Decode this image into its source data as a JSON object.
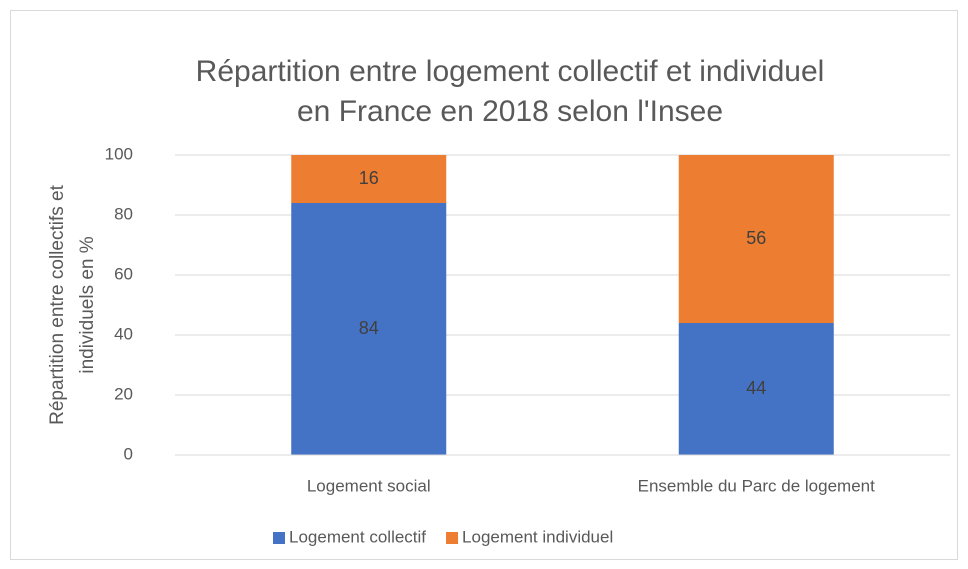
{
  "chart_data": {
    "type": "stacked_bar",
    "title": [
      "Répartition entre logement collectif et individuel",
      "en France en 2018 selon l'Insee"
    ],
    "y_label": [
      "Répartition entre collectifs et",
      "individuels en %"
    ],
    "categories": [
      "Logement social",
      "Ensemble du Parc de logement"
    ],
    "series": [
      {
        "name": "Logement collectif",
        "color": "#4472c4",
        "values": [
          84,
          44
        ]
      },
      {
        "name": "Logement individuel",
        "color": "#ed7d31",
        "values": [
          16,
          56
        ]
      }
    ],
    "ylim": [
      0,
      100
    ],
    "yticks": [
      0,
      20,
      40,
      60,
      80,
      100
    ],
    "grid": true,
    "legend": "bottom"
  }
}
